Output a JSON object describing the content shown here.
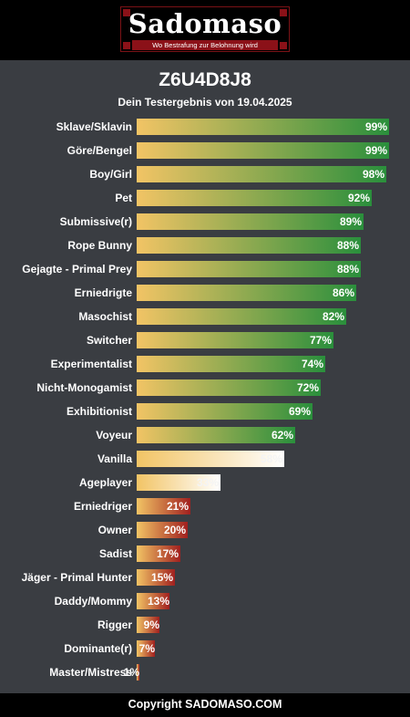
{
  "brand": {
    "name": "Sadomaso",
    "tagline": "Wo Bestrafung zur Belohnung wird"
  },
  "header": {
    "title": "Z6U4D8J8",
    "subtitle": "Dein Testergebnis von 19.04.2025"
  },
  "colors": {
    "bar_start": "#f2c465",
    "high": "#2a8f3c",
    "mid": "#ffffff",
    "low": "#a1201f",
    "page_bg": "#3a3d42"
  },
  "chart_data": {
    "type": "bar",
    "orientation": "horizontal",
    "categories": [
      "Sklave/Sklavin",
      "Göre/Bengel",
      "Boy/Girl",
      "Pet",
      "Submissive(r)",
      "Rope Bunny",
      "Gejagte - Primal Prey",
      "Erniedrigte",
      "Masochist",
      "Switcher",
      "Experimentalist",
      "Nicht-Monogamist",
      "Exhibitionist",
      "Voyeur",
      "Vanilla",
      "Ageplayer",
      "Erniedriger",
      "Owner",
      "Sadist",
      "Jäger - Primal Hunter",
      "Daddy/Mommy",
      "Rigger",
      "Dominante(r)",
      "Master/Mistress"
    ],
    "values": [
      99,
      99,
      98,
      92,
      89,
      88,
      88,
      86,
      82,
      77,
      74,
      72,
      69,
      62,
      58,
      33,
      21,
      20,
      17,
      15,
      13,
      9,
      7,
      1
    ],
    "value_labels": [
      "99%",
      "99%",
      "98%",
      "92%",
      "89%",
      "88%",
      "88%",
      "86%",
      "82%",
      "77%",
      "74%",
      "72%",
      "69%",
      "62%",
      "58%",
      "33%",
      "21%",
      "20%",
      "17%",
      "15%",
      "13%",
      "9%",
      "7%",
      "1%"
    ],
    "xlim": [
      0,
      100
    ],
    "title": "Z6U4D8J8",
    "subtitle": "Dein Testergebnis von 19.04.2025",
    "grid": false,
    "legend": false
  },
  "footer": {
    "copyright": "Copyright SADOMASO.COM"
  }
}
